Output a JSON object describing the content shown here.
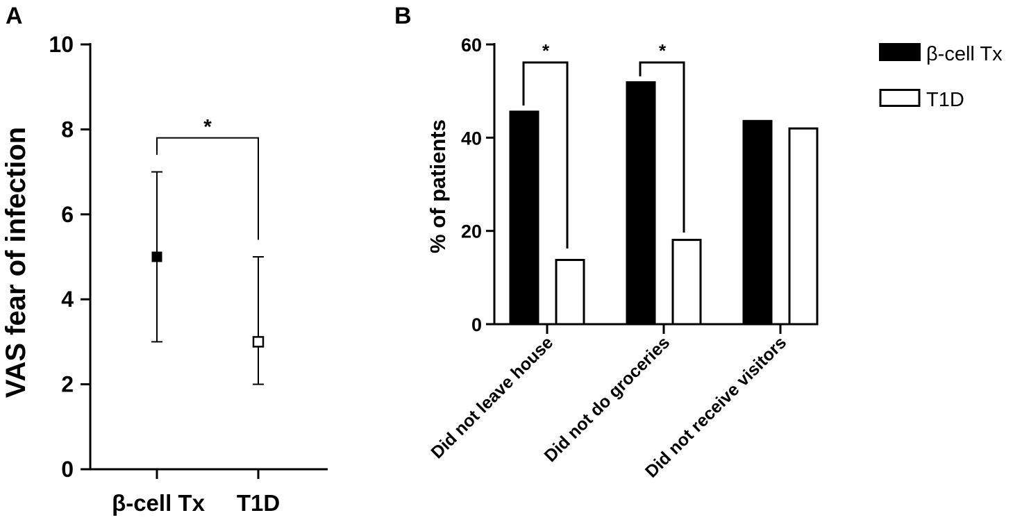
{
  "panels": {
    "a_label": "A",
    "b_label": "B"
  },
  "chart_data": [
    {
      "type": "scatter",
      "panel": "A",
      "ylabel": "VAS fear of infection",
      "ylim": [
        0,
        10
      ],
      "yticks": [
        "0",
        "2",
        "4",
        "6",
        "8",
        "10"
      ],
      "categories": [
        "β-cell Tx",
        "T1D"
      ],
      "points": [
        {
          "category": "β-cell Tx",
          "value": 5,
          "err_low": 3,
          "err_high": 7,
          "marker": "filled-square"
        },
        {
          "category": "T1D",
          "value": 3,
          "err_low": 2,
          "err_high": 5,
          "marker": "open-square"
        }
      ],
      "significance": [
        {
          "between": [
            "β-cell Tx",
            "T1D"
          ],
          "label": "*"
        }
      ]
    },
    {
      "type": "bar",
      "panel": "B",
      "ylabel": "% of patients",
      "ylim": [
        0,
        60
      ],
      "yticks": [
        "0",
        "20",
        "40",
        "60"
      ],
      "categories": [
        "Did not leave house",
        "Did not do groceries",
        "Did not receive visitors"
      ],
      "series": [
        {
          "name": "β-cell Tx",
          "values": [
            45.8,
            52.1,
            43.8
          ],
          "fill": "#000000"
        },
        {
          "name": "T1D",
          "values": [
            14.0,
            18.3,
            42.2
          ],
          "fill": "#ffffff"
        }
      ],
      "legend_position": "top-right",
      "significance": [
        {
          "category": "Did not leave house",
          "label": "*"
        },
        {
          "category": "Did not do groceries",
          "label": "*"
        }
      ]
    }
  ],
  "colors": {
    "ink": "#000000",
    "open": "#ffffff"
  }
}
